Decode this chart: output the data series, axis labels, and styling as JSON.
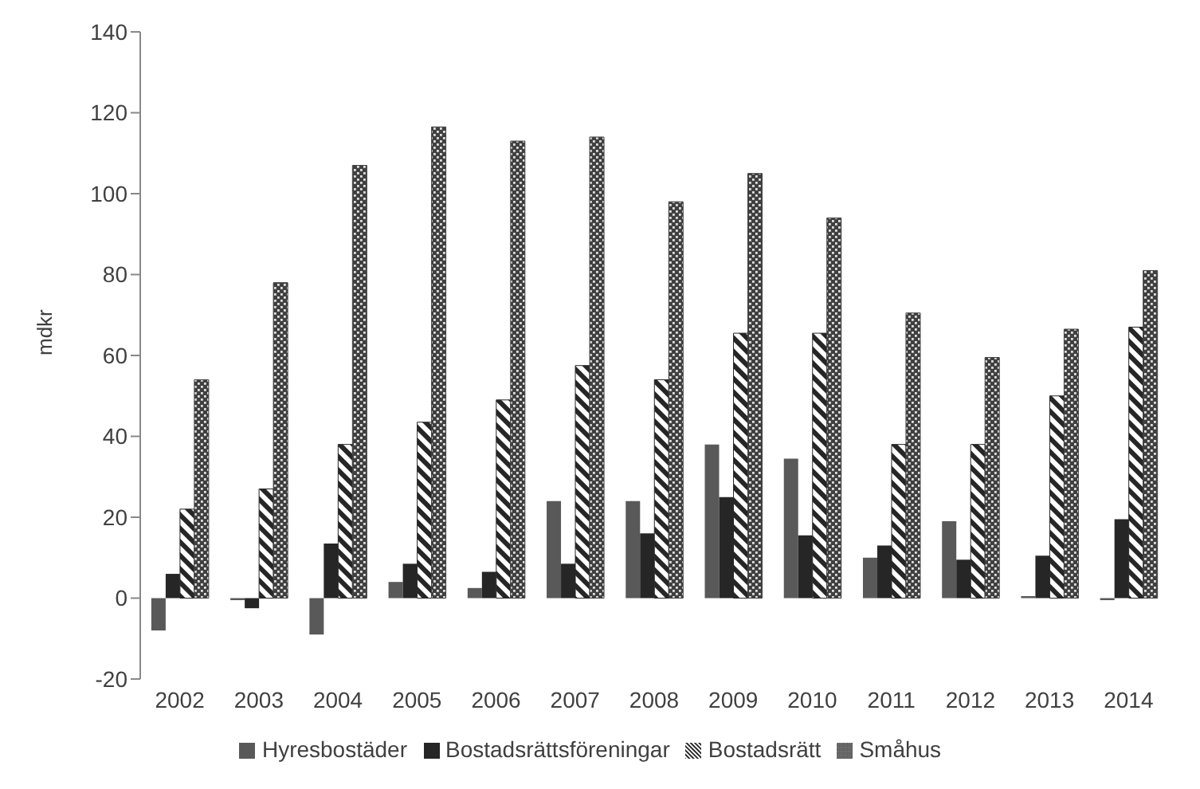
{
  "chart_data": {
    "type": "bar",
    "ylabel": "mdkr",
    "categories": [
      "2002",
      "2003",
      "2004",
      "2005",
      "2006",
      "2007",
      "2008",
      "2009",
      "2010",
      "2011",
      "2012",
      "2013",
      "2014"
    ],
    "series": [
      {
        "name": "Hyresbostäder",
        "color": "#595959",
        "values": [
          -8,
          -0.5,
          -9,
          4,
          2.5,
          24,
          24,
          38,
          34.5,
          10,
          19,
          0.5,
          -0.5
        ]
      },
      {
        "name": "Bostadsrättsföreningar",
        "color": "#262626",
        "values": [
          6,
          -2.5,
          13.5,
          8.5,
          6.5,
          8.5,
          16,
          25,
          15.5,
          13,
          9.5,
          10.5,
          19.5
        ]
      },
      {
        "name": "Bostadsrätt",
        "color": "#262626",
        "values": [
          22,
          27,
          38,
          43.5,
          49,
          57.5,
          54,
          65.5,
          65.5,
          38,
          38,
          50,
          67
        ]
      },
      {
        "name": "Småhus",
        "color": "#404040",
        "values": [
          54,
          78,
          107,
          116.5,
          113,
          114,
          98,
          105,
          94,
          70.5,
          59.5,
          66.5,
          81
        ]
      }
    ],
    "ylim": [
      -20,
      140
    ],
    "yticks": [
      -20,
      0,
      20,
      40,
      60,
      80,
      100,
      120,
      140
    ],
    "legend": "bottom"
  }
}
